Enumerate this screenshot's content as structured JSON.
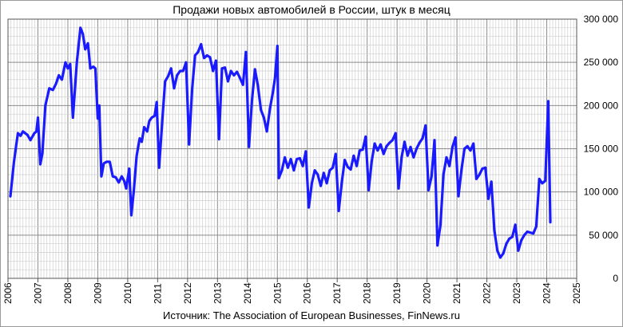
{
  "chart_data": {
    "type": "line",
    "title": "Продажи новых автомобилей в России, штук в месяц",
    "source": "Источник: The Association of European Businesses, FinNews.ru",
    "xlabel": "",
    "ylabel": "",
    "xlim": [
      2006,
      2025
    ],
    "ylim": [
      0,
      300000
    ],
    "x_ticks": [
      "2006",
      "2007",
      "2008",
      "2009",
      "2010",
      "2011",
      "2012",
      "2013",
      "2014",
      "2015",
      "2016",
      "2017",
      "2018",
      "2019",
      "2020",
      "2021",
      "2022",
      "2023",
      "2024",
      "2025"
    ],
    "y_ticks": [
      "0",
      "50 000",
      "100 000",
      "150 000",
      "200 000",
      "250 000",
      "300 000"
    ],
    "y_tick_values": [
      0,
      50000,
      100000,
      150000,
      200000,
      250000,
      300000
    ],
    "grid": true,
    "y_axis_side": "right",
    "series": [
      {
        "color": "#1a1aff",
        "points": [
          [
            2006.08,
            95000
          ],
          [
            2006.2,
            135000
          ],
          [
            2006.33,
            168000
          ],
          [
            2006.42,
            165000
          ],
          [
            2006.5,
            170000
          ],
          [
            2006.65,
            166000
          ],
          [
            2006.75,
            160000
          ],
          [
            2006.88,
            168000
          ],
          [
            2006.95,
            170000
          ],
          [
            2007.0,
            186000
          ],
          [
            2007.08,
            132000
          ],
          [
            2007.15,
            145000
          ],
          [
            2007.25,
            200000
          ],
          [
            2007.38,
            220000
          ],
          [
            2007.5,
            218000
          ],
          [
            2007.6,
            225000
          ],
          [
            2007.7,
            235000
          ],
          [
            2007.8,
            230000
          ],
          [
            2007.92,
            250000
          ],
          [
            2008.0,
            243000
          ],
          [
            2008.08,
            248000
          ],
          [
            2008.17,
            186000
          ],
          [
            2008.3,
            250000
          ],
          [
            2008.42,
            290000
          ],
          [
            2008.5,
            283000
          ],
          [
            2008.58,
            265000
          ],
          [
            2008.67,
            272000
          ],
          [
            2008.75,
            243000
          ],
          [
            2008.85,
            245000
          ],
          [
            2008.92,
            243000
          ],
          [
            2009.0,
            185000
          ],
          [
            2009.05,
            200000
          ],
          [
            2009.12,
            118000
          ],
          [
            2009.2,
            133000
          ],
          [
            2009.3,
            135000
          ],
          [
            2009.4,
            135000
          ],
          [
            2009.5,
            118000
          ],
          [
            2009.6,
            117000
          ],
          [
            2009.7,
            111000
          ],
          [
            2009.8,
            118000
          ],
          [
            2009.88,
            113000
          ],
          [
            2009.95,
            104000
          ],
          [
            2010.05,
            127000
          ],
          [
            2010.12,
            73000
          ],
          [
            2010.2,
            100000
          ],
          [
            2010.3,
            142000
          ],
          [
            2010.4,
            162000
          ],
          [
            2010.47,
            158000
          ],
          [
            2010.55,
            175000
          ],
          [
            2010.65,
            170000
          ],
          [
            2010.72,
            182000
          ],
          [
            2010.8,
            186000
          ],
          [
            2010.9,
            188000
          ],
          [
            2010.97,
            204000
          ],
          [
            2011.05,
            128000
          ],
          [
            2011.15,
            180000
          ],
          [
            2011.25,
            228000
          ],
          [
            2011.35,
            234000
          ],
          [
            2011.45,
            243000
          ],
          [
            2011.55,
            220000
          ],
          [
            2011.65,
            235000
          ],
          [
            2011.75,
            240000
          ],
          [
            2011.85,
            240000
          ],
          [
            2011.95,
            250000
          ],
          [
            2012.05,
            155000
          ],
          [
            2012.15,
            218000
          ],
          [
            2012.25,
            258000
          ],
          [
            2012.35,
            262000
          ],
          [
            2012.45,
            271000
          ],
          [
            2012.55,
            255000
          ],
          [
            2012.65,
            258000
          ],
          [
            2012.75,
            256000
          ],
          [
            2012.85,
            240000
          ],
          [
            2012.95,
            252000
          ],
          [
            2013.05,
            161000
          ],
          [
            2013.15,
            243000
          ],
          [
            2013.25,
            244000
          ],
          [
            2013.35,
            228000
          ],
          [
            2013.45,
            240000
          ],
          [
            2013.55,
            235000
          ],
          [
            2013.65,
            239000
          ],
          [
            2013.75,
            232000
          ],
          [
            2013.85,
            224000
          ],
          [
            2013.95,
            262000
          ],
          [
            2014.05,
            152000
          ],
          [
            2014.15,
            205000
          ],
          [
            2014.25,
            242000
          ],
          [
            2014.35,
            223000
          ],
          [
            2014.45,
            195000
          ],
          [
            2014.55,
            186000
          ],
          [
            2014.65,
            170000
          ],
          [
            2014.75,
            196000
          ],
          [
            2014.85,
            215000
          ],
          [
            2014.92,
            232000
          ],
          [
            2015.0,
            269000
          ],
          [
            2015.05,
            116000
          ],
          [
            2015.15,
            125000
          ],
          [
            2015.25,
            140000
          ],
          [
            2015.35,
            128000
          ],
          [
            2015.45,
            138000
          ],
          [
            2015.55,
            125000
          ],
          [
            2015.65,
            138000
          ],
          [
            2015.75,
            139000
          ],
          [
            2015.85,
            130000
          ],
          [
            2015.95,
            147000
          ],
          [
            2016.05,
            82000
          ],
          [
            2016.15,
            110000
          ],
          [
            2016.25,
            125000
          ],
          [
            2016.35,
            120000
          ],
          [
            2016.45,
            107000
          ],
          [
            2016.55,
            122000
          ],
          [
            2016.65,
            110000
          ],
          [
            2016.75,
            125000
          ],
          [
            2016.85,
            128000
          ],
          [
            2016.95,
            144000
          ],
          [
            2017.05,
            78000
          ],
          [
            2017.15,
            110000
          ],
          [
            2017.25,
            137000
          ],
          [
            2017.35,
            129000
          ],
          [
            2017.45,
            126000
          ],
          [
            2017.55,
            142000
          ],
          [
            2017.65,
            130000
          ],
          [
            2017.75,
            148000
          ],
          [
            2017.85,
            149000
          ],
          [
            2017.95,
            164000
          ],
          [
            2018.05,
            102000
          ],
          [
            2018.15,
            135000
          ],
          [
            2018.25,
            156000
          ],
          [
            2018.35,
            148000
          ],
          [
            2018.45,
            155000
          ],
          [
            2018.55,
            144000
          ],
          [
            2018.65,
            153000
          ],
          [
            2018.75,
            157000
          ],
          [
            2018.85,
            160000
          ],
          [
            2018.95,
            168000
          ],
          [
            2019.05,
            104000
          ],
          [
            2019.15,
            140000
          ],
          [
            2019.25,
            158000
          ],
          [
            2019.35,
            142000
          ],
          [
            2019.45,
            152000
          ],
          [
            2019.55,
            140000
          ],
          [
            2019.65,
            150000
          ],
          [
            2019.75,
            157000
          ],
          [
            2019.85,
            162000
          ],
          [
            2019.95,
            177000
          ],
          [
            2020.05,
            102000
          ],
          [
            2020.15,
            118000
          ],
          [
            2020.25,
            160000
          ],
          [
            2020.35,
            38000
          ],
          [
            2020.45,
            62000
          ],
          [
            2020.55,
            120000
          ],
          [
            2020.65,
            140000
          ],
          [
            2020.75,
            130000
          ],
          [
            2020.85,
            152000
          ],
          [
            2020.95,
            163000
          ],
          [
            2021.05,
            95000
          ],
          [
            2021.15,
            125000
          ],
          [
            2021.25,
            150000
          ],
          [
            2021.35,
            153000
          ],
          [
            2021.45,
            148000
          ],
          [
            2021.55,
            156000
          ],
          [
            2021.65,
            115000
          ],
          [
            2021.75,
            120000
          ],
          [
            2021.85,
            127000
          ],
          [
            2021.95,
            128000
          ],
          [
            2022.05,
            92000
          ],
          [
            2022.15,
            112000
          ],
          [
            2022.25,
            56000
          ],
          [
            2022.35,
            32000
          ],
          [
            2022.45,
            24000
          ],
          [
            2022.55,
            29000
          ],
          [
            2022.65,
            40000
          ],
          [
            2022.75,
            46000
          ],
          [
            2022.85,
            48000
          ],
          [
            2022.95,
            62000
          ],
          [
            2023.05,
            32000
          ],
          [
            2023.15,
            44000
          ],
          [
            2023.25,
            50000
          ],
          [
            2023.35,
            54000
          ],
          [
            2023.45,
            53000
          ],
          [
            2023.55,
            52000
          ],
          [
            2023.65,
            60000
          ],
          [
            2023.75,
            115000
          ],
          [
            2023.85,
            110000
          ],
          [
            2023.95,
            113000
          ],
          [
            2024.05,
            205000
          ],
          [
            2024.12,
            65000
          ]
        ]
      }
    ]
  }
}
